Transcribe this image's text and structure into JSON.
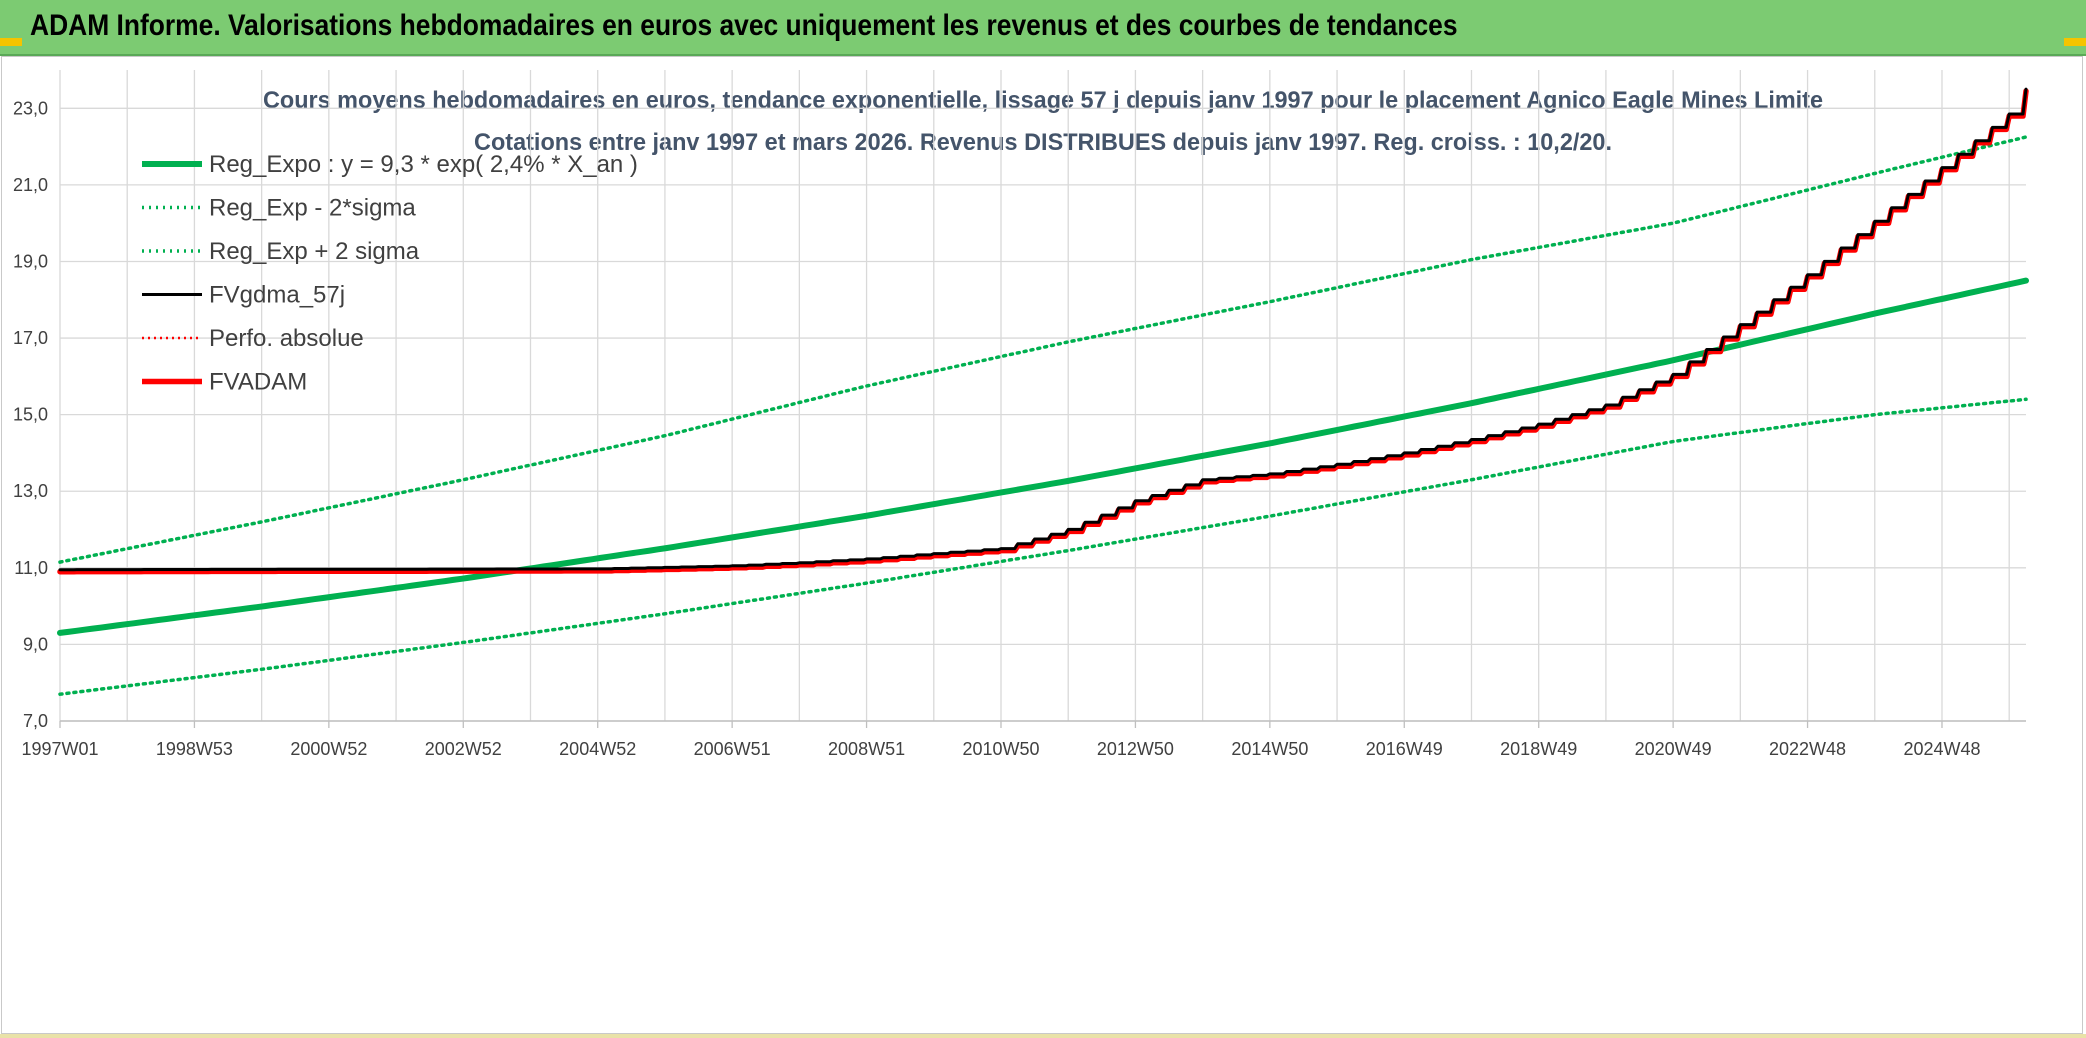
{
  "header": {
    "title": "ADAM Informe. Valorisations hebdomadaires en euros avec uniquement les revenus et des courbes de tendances"
  },
  "colors": {
    "header_bg": "#7ccb72",
    "reg_expo": "#00b050",
    "bands": "#00b050",
    "fvgdma": "#000000",
    "perfo": "#ff0000",
    "fvadam": "#ff0000",
    "grid": "#d9d9d9"
  },
  "chart_data": {
    "type": "line",
    "title": "Cours moyens hebdomadaires en euros, tendance exponentielle, lissage 57 j depuis janv 1997 pour le placement Agnico Eagle Mines Limite",
    "subtitle": "Cotations entre janv 1997 et mars 2026. Revenus DISTRIBUES depuis janv 1997. Reg. croiss. : 10,2/20.",
    "xlabel": "",
    "ylabel": "",
    "ylim": [
      7,
      24
    ],
    "xlim": [
      1997.0,
      2026.25
    ],
    "y_ticks": [
      "7,0",
      "9,0",
      "11,0",
      "13,0",
      "15,0",
      "17,0",
      "19,0",
      "21,0",
      "23,0"
    ],
    "y_tick_values": [
      7,
      9,
      11,
      13,
      15,
      17,
      19,
      21,
      23
    ],
    "x_tick_labels": [
      "1997W01",
      "1998W53",
      "2000W52",
      "2002W52",
      "2004W52",
      "2006W51",
      "2008W51",
      "2010W50",
      "2012W50",
      "2014W50",
      "2016W49",
      "2018W49",
      "2020W49",
      "2022W48",
      "2024W48"
    ],
    "x_tick_years": [
      1997.0,
      1999.0,
      2001.0,
      2003.0,
      2005.0,
      2007.0,
      2009.0,
      2011.0,
      2013.0,
      2015.0,
      2017.0,
      2019.0,
      2021.0,
      2023.0,
      2025.0
    ],
    "grid": true,
    "legend_position": "top-left",
    "series": [
      {
        "name": "Reg_Expo : y = 9,3 * exp( 2,4% *  X_an )",
        "style": "solid-thick",
        "x": [
          1997,
          2000,
          2003,
          2006,
          2009,
          2012,
          2015,
          2018,
          2021,
          2024,
          2026.25
        ],
        "values": [
          9.3,
          9.99,
          10.72,
          11.51,
          12.36,
          13.27,
          14.25,
          15.3,
          16.42,
          17.64,
          18.5
        ]
      },
      {
        "name": "Reg_Exp - 2*sigma",
        "style": "dotted",
        "x": [
          1997,
          2000,
          2003,
          2006,
          2009,
          2012,
          2015,
          2018,
          2021,
          2024,
          2026.25
        ],
        "values": [
          7.7,
          8.35,
          9.05,
          9.8,
          10.6,
          11.45,
          12.35,
          13.3,
          14.3,
          15.0,
          15.4
        ]
      },
      {
        "name": "Reg_Exp + 2 sigma",
        "style": "dotted",
        "x": [
          1997,
          2000,
          2003,
          2006,
          2009,
          2012,
          2015,
          2018,
          2021,
          2024,
          2026.25
        ],
        "values": [
          11.15,
          12.2,
          13.3,
          14.45,
          15.75,
          16.9,
          17.95,
          19.05,
          20.0,
          21.3,
          22.25
        ]
      },
      {
        "name": "FVgdma_57j",
        "style": "solid-thin",
        "x": [
          1997,
          2005,
          2007,
          2008,
          2009,
          2010,
          2011,
          2012,
          2013,
          2014,
          2015,
          2016,
          2017,
          2018,
          2019,
          2020,
          2021,
          2022,
          2023,
          2024,
          2025,
          2026,
          2026.25
        ],
        "values": [
          10.9,
          10.92,
          11.0,
          11.08,
          11.18,
          11.32,
          11.45,
          11.95,
          12.7,
          13.25,
          13.4,
          13.65,
          13.95,
          14.3,
          14.7,
          15.2,
          16.0,
          17.3,
          18.6,
          20.0,
          21.4,
          22.8,
          23.45
        ]
      },
      {
        "name": "Perfo. absolue",
        "style": "dotted-red",
        "x": [],
        "values": []
      },
      {
        "name": "FVADAM",
        "style": "solid-thick-stepped",
        "x": [
          1997,
          2005,
          2007,
          2008,
          2009,
          2010,
          2011,
          2012,
          2013,
          2014,
          2015,
          2016,
          2017,
          2018,
          2019,
          2020,
          2021,
          2022,
          2023,
          2024,
          2025,
          2026,
          2026.25
        ],
        "values": [
          10.9,
          10.92,
          11.0,
          11.08,
          11.18,
          11.32,
          11.45,
          11.95,
          12.7,
          13.25,
          13.4,
          13.65,
          13.95,
          14.3,
          14.7,
          15.2,
          16.0,
          17.3,
          18.6,
          20.0,
          21.4,
          22.8,
          23.45
        ]
      }
    ]
  }
}
